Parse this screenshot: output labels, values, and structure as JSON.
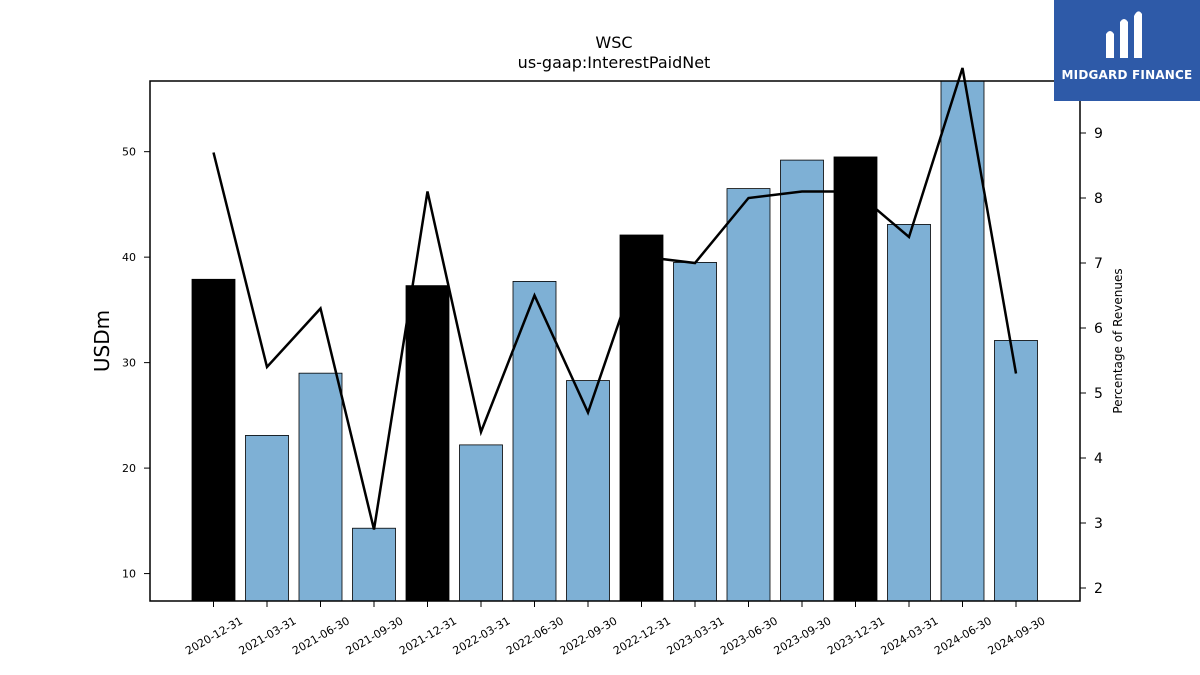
{
  "chart_data": {
    "type": "bar",
    "title": "WSC",
    "subtitle": "us-gaap:InterestPaidNet",
    "ylabel": "USDm",
    "y2label": "Percentage of Revenues",
    "categories": [
      "2020-12-31",
      "2021-03-31",
      "2021-06-30",
      "2021-09-30",
      "2021-12-31",
      "2022-03-31",
      "2022-06-30",
      "2022-09-30",
      "2022-12-31",
      "2023-03-31",
      "2023-06-30",
      "2023-09-30",
      "2023-12-31",
      "2024-03-31",
      "2024-06-30",
      "2024-09-30"
    ],
    "series": [
      {
        "values": [
          37.9,
          23.1,
          29.0,
          14.3,
          37.3,
          22.2,
          37.7,
          28.3,
          42.1,
          39.5,
          46.5,
          49.2,
          49.5,
          43.1,
          57.0,
          32.1
        ],
        "bar_colors": [
          "#000000",
          "#7eb0d5",
          "#7eb0d5",
          "#7eb0d5",
          "#000000",
          "#7eb0d5",
          "#7eb0d5",
          "#7eb0d5",
          "#000000",
          "#7eb0d5",
          "#7eb0d5",
          "#7eb0d5",
          "#000000",
          "#7eb0d5",
          "#7eb0d5",
          "#7eb0d5"
        ]
      },
      {
        "axis": "right",
        "type": "line",
        "color": "#000000",
        "values": [
          8.7,
          5.4,
          6.3,
          2.9,
          8.1,
          4.4,
          6.5,
          4.7,
          7.1,
          7.0,
          8.0,
          8.1,
          8.1,
          7.4,
          10.0,
          5.3
        ]
      }
    ],
    "ylim": [
      7.4,
      56.7
    ],
    "y2lim": [
      1.8,
      9.8
    ],
    "yticks": [
      10,
      20,
      30,
      40,
      50
    ],
    "y2ticks": [
      2,
      3,
      4,
      5,
      6,
      7,
      8,
      9
    ],
    "grid": false
  },
  "logo": {
    "text": "MIDGARD FINANCE",
    "background": "#2e5aa8"
  }
}
